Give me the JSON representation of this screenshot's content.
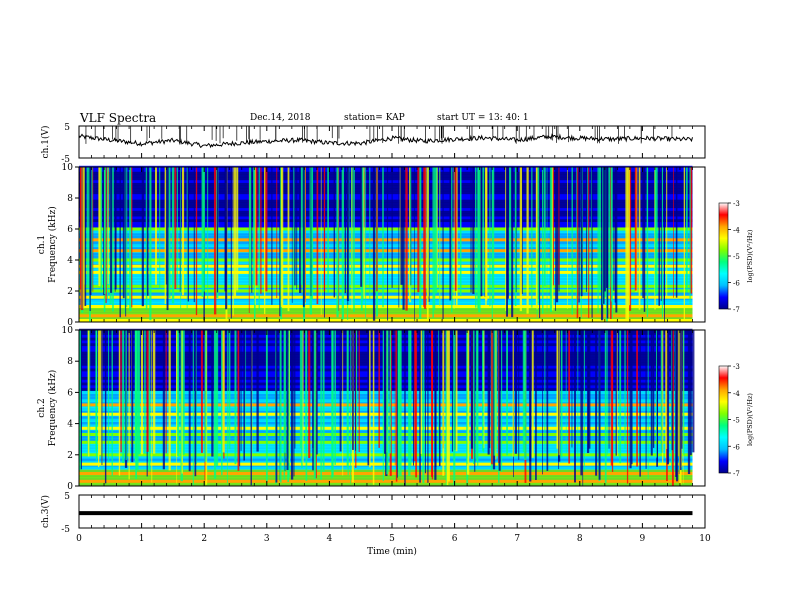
{
  "header": {
    "title": "VLF Spectra",
    "date": "Dec.14, 2018",
    "station": "station= KAP",
    "start_ut": "start  UT =   13: 40: 1"
  },
  "colors": {
    "colormap": [
      "#00008b",
      "#0000ff",
      "#00bfff",
      "#00ffff",
      "#00ff7f",
      "#7fff00",
      "#ffff00",
      "#ffa500",
      "#ff0000",
      "#ffffff"
    ],
    "trace": "#000000"
  },
  "chart_data": [
    {
      "type": "line",
      "ylabel": "ch.1(V)",
      "ylim": [
        -5,
        5
      ],
      "yticks": [
        "5",
        "-5"
      ],
      "xlim": [
        0,
        10
      ],
      "series": [
        {
          "x": [
            0,
            0.5,
            1,
            1.5,
            2,
            2.5,
            3,
            3.5,
            4,
            4.5,
            5,
            5.5,
            6,
            6.5,
            7,
            7.5,
            8,
            8.5,
            9,
            9.5,
            9.8
          ],
          "values": [
            1.8,
            0.6,
            -0.5,
            0.5,
            -1.2,
            -0.4,
            0.2,
            0.6,
            -0.3,
            -0.4,
            1.2,
            0.3,
            0.9,
            1.3,
            0.6,
            1.7,
            1.2,
            0.9,
            1.2,
            0.9,
            0.8
          ]
        }
      ]
    },
    {
      "type": "heatmap",
      "ylabel": "ch.1\nFrequency (kHz)",
      "ylim": [
        0,
        10
      ],
      "yticks": [
        "0",
        "2",
        "4",
        "6",
        "8",
        "10"
      ],
      "xlim": [
        0,
        9.8
      ],
      "colorbar": {
        "label": "log(PSD)(V²/Hz)",
        "range": [
          -7,
          -3
        ],
        "ticks": [
          "-3",
          "-4",
          "-5",
          "-6",
          "-7"
        ]
      },
      "bands_khz": [
        0.1,
        0.4,
        1.0,
        1.6,
        2.0,
        2.3,
        3.2,
        3.6,
        4.0,
        4.6,
        5.3,
        6.0
      ]
    },
    {
      "type": "heatmap",
      "ylabel": "ch.2\nFrequency (kHz)",
      "ylim": [
        0,
        10
      ],
      "yticks": [
        "0",
        "2",
        "4",
        "6",
        "8",
        "10"
      ],
      "xlim": [
        0,
        9.8
      ],
      "colorbar": {
        "label": "log(PSD)(V²/Hz)",
        "range": [
          -7,
          -3
        ],
        "ticks": [
          "-3",
          "-4",
          "-5",
          "-6",
          "-7"
        ]
      },
      "bands_khz": [
        0.3,
        0.8,
        1.4,
        2.0,
        2.8,
        3.3,
        3.7,
        4.6,
        5.2
      ]
    },
    {
      "type": "line",
      "ylabel": "ch.3(V)",
      "ylim": [
        -5,
        5
      ],
      "yticks": [
        "5",
        "-5"
      ],
      "xlim": [
        0,
        10
      ],
      "xlabel": "Time  (min)",
      "xticks": [
        "0",
        "1",
        "2",
        "3",
        "4",
        "5",
        "6",
        "7",
        "8",
        "9",
        "10"
      ],
      "series": [
        {
          "x": [
            0,
            9.8
          ],
          "values": [
            -0.5,
            -0.5
          ]
        }
      ]
    }
  ]
}
